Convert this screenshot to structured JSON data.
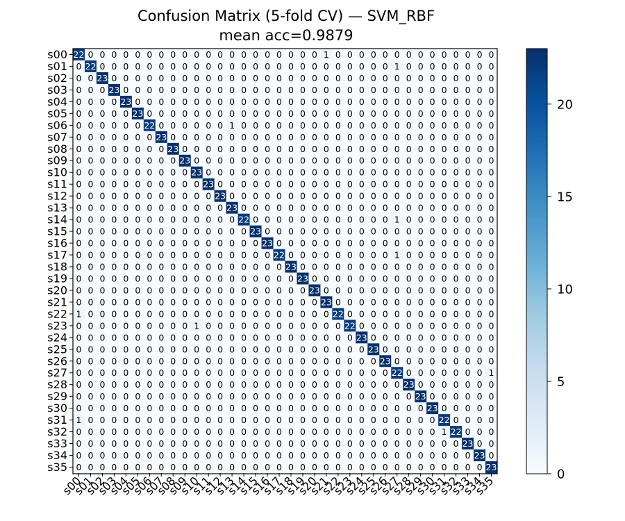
{
  "chart_data": {
    "type": "heatmap",
    "title": "Confusion Matrix (5-fold CV) — SVM_RBF",
    "subtitle": "mean acc=0.9879",
    "labels": [
      "s00",
      "s01",
      "s02",
      "s03",
      "s04",
      "s05",
      "s06",
      "s07",
      "s08",
      "s09",
      "s10",
      "s11",
      "s12",
      "s13",
      "s14",
      "s15",
      "s16",
      "s17",
      "s18",
      "s19",
      "s20",
      "s21",
      "s22",
      "s23",
      "s24",
      "s25",
      "s26",
      "s27",
      "s28",
      "s29",
      "s30",
      "s31",
      "s32",
      "s33",
      "s34",
      "s35"
    ],
    "diagonal": [
      22,
      22,
      23,
      23,
      23,
      23,
      22,
      23,
      23,
      23,
      23,
      23,
      23,
      23,
      22,
      23,
      23,
      22,
      23,
      23,
      23,
      23,
      22,
      22,
      23,
      23,
      23,
      22,
      23,
      23,
      23,
      22,
      22,
      23,
      23,
      23
    ],
    "off_diagonal": [
      {
        "row": 0,
        "col": 21,
        "value": 1
      },
      {
        "row": 1,
        "col": 27,
        "value": 1
      },
      {
        "row": 6,
        "col": 13,
        "value": 1
      },
      {
        "row": 14,
        "col": 27,
        "value": 1
      },
      {
        "row": 17,
        "col": 27,
        "value": 1
      },
      {
        "row": 22,
        "col": 0,
        "value": 1
      },
      {
        "row": 23,
        "col": 10,
        "value": 1
      },
      {
        "row": 27,
        "col": 35,
        "value": 1
      },
      {
        "row": 31,
        "col": 0,
        "value": 1
      },
      {
        "row": 32,
        "col": 31,
        "value": 1
      }
    ],
    "colorbar": {
      "min": 0,
      "max": 23,
      "ticks": [
        0,
        5,
        10,
        15,
        20
      ],
      "colormap": "Blues"
    },
    "colors": {
      "low": "#f7fbff",
      "high": "#08306b"
    }
  }
}
